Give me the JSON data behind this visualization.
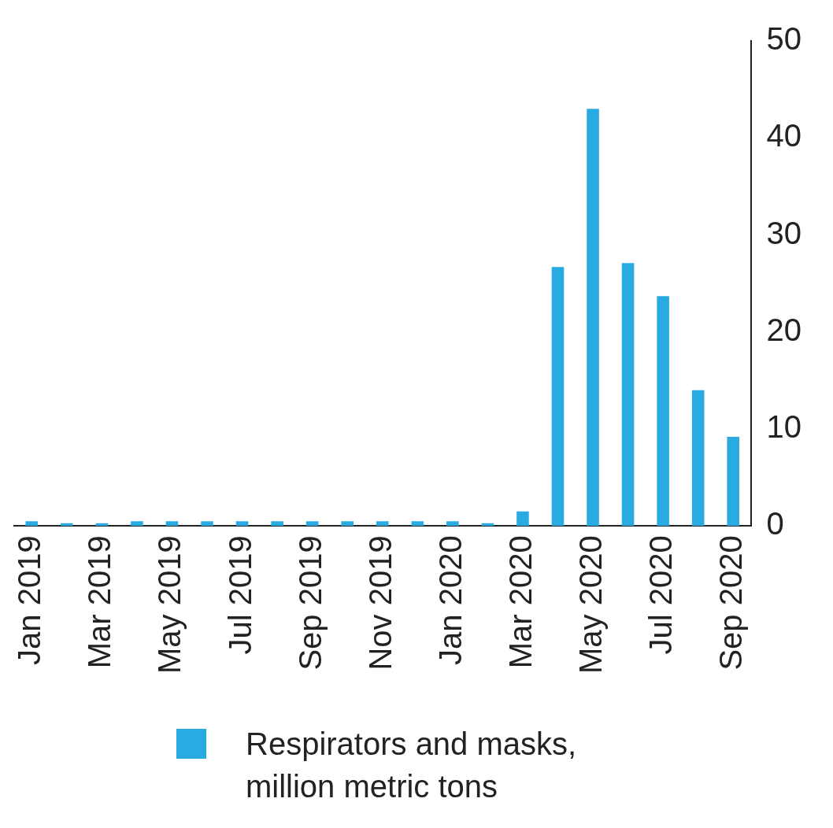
{
  "chart_data": {
    "type": "bar",
    "categories": [
      "Jan 2019",
      null,
      "Mar 2019",
      null,
      "May 2019",
      null,
      "Jul 2019",
      null,
      "Sep 2019",
      null,
      "Nov 2019",
      null,
      "Jan 2020",
      null,
      "Mar 2020",
      null,
      "May 2020",
      null,
      "Jul 2020",
      null,
      "Sep 2020"
    ],
    "series": [
      {
        "name": "Respirators and masks, million metric tons",
        "color": "#29abe2",
        "values": [
          0.5,
          0.3,
          0.3,
          0.5,
          0.5,
          0.5,
          0.5,
          0.5,
          0.5,
          0.5,
          0.5,
          0.5,
          0.5,
          0.3,
          1.5,
          26.7,
          43,
          27.1,
          23.7,
          14,
          9.2
        ]
      }
    ],
    "ylim": [
      0,
      50
    ],
    "yticks": [
      0,
      10,
      20,
      30,
      40,
      50
    ],
    "grid": false,
    "legend": "bottom"
  }
}
